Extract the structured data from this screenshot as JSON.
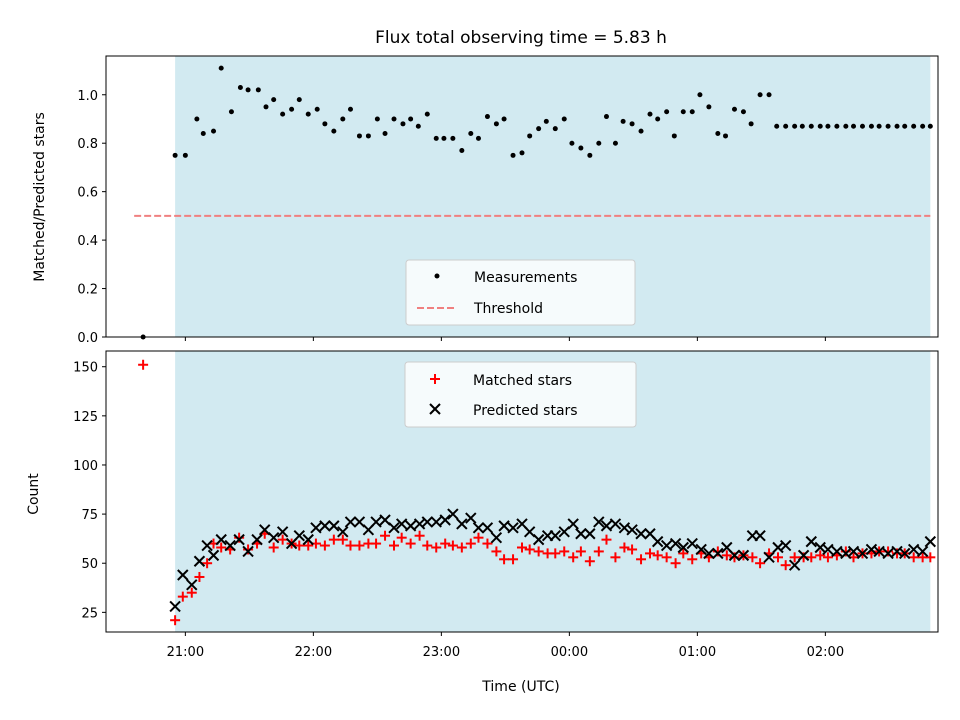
{
  "chart_data": [
    {
      "type": "scatter",
      "title": "Flux total observing time = 5.83 h",
      "ylabel": "Matched/Predicted stars",
      "xlabel": "",
      "ylim": [
        0,
        1.16
      ],
      "yticks": [
        0.0,
        0.2,
        0.4,
        0.6,
        0.8,
        1.0
      ],
      "ytick_labels": [
        "0.0",
        "0.2",
        "0.4",
        "0.6",
        "0.8",
        "1.0"
      ],
      "x_unit": "hours after 21:00 UTC",
      "xlim": [
        -0.62,
        5.88
      ],
      "xticks": [
        0,
        1,
        2,
        3,
        4,
        5
      ],
      "xtick_labels": [],
      "shaded_span": [
        -0.08,
        5.82
      ],
      "shade_color": "#add8e6",
      "threshold": 0.5,
      "threshold_xrange": [
        -0.4,
        5.82
      ],
      "threshold_color": "#f08080",
      "legend_position": "lower center",
      "series": [
        {
          "name": "Measurements",
          "marker": "dot",
          "color": "#000000",
          "x": [
            -0.33,
            -0.08,
            0.0,
            0.09,
            0.14,
            0.22,
            0.28,
            0.36,
            0.43,
            0.49,
            0.57,
            0.63,
            0.69,
            0.76,
            0.83,
            0.89,
            0.96,
            1.03,
            1.09,
            1.16,
            1.23,
            1.29,
            1.36,
            1.43,
            1.5,
            1.56,
            1.63,
            1.7,
            1.76,
            1.82,
            1.89,
            1.96,
            2.02,
            2.09,
            2.16,
            2.23,
            2.29,
            2.36,
            2.43,
            2.49,
            2.56,
            2.63,
            2.69,
            2.76,
            2.82,
            2.89,
            2.96,
            3.02,
            3.09,
            3.16,
            3.23,
            3.29,
            3.36,
            3.42,
            3.49,
            3.56,
            3.63,
            3.69,
            3.76,
            3.82,
            3.89,
            3.96,
            4.02,
            4.09,
            4.16,
            4.22,
            4.29,
            4.36,
            4.42,
            4.49,
            4.56,
            4.62,
            4.69,
            4.76,
            4.82,
            4.89,
            4.96,
            5.02,
            5.09,
            5.16,
            5.22,
            5.29,
            5.36,
            5.42,
            5.49,
            5.56,
            5.62,
            5.69,
            5.76,
            5.82
          ],
          "y": [
            0.0,
            0.75,
            0.75,
            0.9,
            0.84,
            0.85,
            1.11,
            0.93,
            1.03,
            1.02,
            1.02,
            0.95,
            0.98,
            0.92,
            0.94,
            0.98,
            0.92,
            0.94,
            0.88,
            0.85,
            0.9,
            0.94,
            0.83,
            0.83,
            0.9,
            0.84,
            0.9,
            0.88,
            0.9,
            0.87,
            0.92,
            0.82,
            0.82,
            0.82,
            0.77,
            0.84,
            0.82,
            0.91,
            0.88,
            0.9,
            0.75,
            0.76,
            0.83,
            0.86,
            0.89,
            0.86,
            0.9,
            0.8,
            0.78,
            0.75,
            0.8,
            0.91,
            0.8,
            0.89,
            0.88,
            0.85,
            0.92,
            0.9,
            0.93,
            0.83,
            0.93,
            0.93,
            1.0,
            0.95,
            0.84,
            0.83,
            0.94,
            0.93,
            0.88,
            1.0,
            1.0,
            0.87,
            0.87,
            0.87,
            0.87,
            0.87,
            0.87,
            0.87,
            0.87,
            0.87,
            0.87,
            0.87,
            0.87,
            0.87,
            0.87,
            0.87,
            0.87,
            0.87,
            0.87,
            0.87
          ]
        },
        {
          "name": "Threshold",
          "style": "dashed",
          "color": "#f08080"
        }
      ]
    },
    {
      "type": "scatter",
      "title": "",
      "ylabel": "Count",
      "xlabel": "Time (UTC)",
      "ylim": [
        15,
        158
      ],
      "yticks": [
        25,
        50,
        75,
        100,
        125,
        150
      ],
      "ytick_labels": [
        "25",
        "50",
        "75",
        "100",
        "125",
        "150"
      ],
      "x_unit": "hours after 21:00 UTC",
      "xlim": [
        -0.62,
        5.88
      ],
      "xticks": [
        0,
        1,
        2,
        3,
        4,
        5
      ],
      "xtick_labels": [
        "21:00",
        "22:00",
        "23:00",
        "00:00",
        "01:00",
        "02:00"
      ],
      "shaded_span": [
        -0.08,
        5.82
      ],
      "shade_color": "#add8e6",
      "legend_position": "upper center",
      "series": [
        {
          "name": "Matched stars",
          "marker": "plus",
          "color": "#ff0000",
          "x": [
            -0.33,
            -0.08,
            -0.02,
            0.05,
            0.11,
            0.17,
            0.22,
            0.28,
            0.35,
            0.42,
            0.49,
            0.56,
            0.62,
            0.69,
            0.76,
            0.83,
            0.89,
            0.96,
            1.02,
            1.09,
            1.16,
            1.23,
            1.29,
            1.36,
            1.43,
            1.49,
            1.56,
            1.63,
            1.69,
            1.76,
            1.83,
            1.89,
            1.96,
            2.03,
            2.09,
            2.16,
            2.23,
            2.29,
            2.36,
            2.43,
            2.49,
            2.56,
            2.63,
            2.69,
            2.76,
            2.83,
            2.89,
            2.96,
            3.03,
            3.09,
            3.16,
            3.23,
            3.29,
            3.36,
            3.43,
            3.49,
            3.56,
            3.63,
            3.69,
            3.76,
            3.83,
            3.89,
            3.96,
            4.03,
            4.09,
            4.16,
            4.23,
            4.29,
            4.36,
            4.43,
            4.49,
            4.56,
            4.63,
            4.69,
            4.76,
            4.83,
            4.89,
            4.96,
            5.02,
            5.09,
            5.16,
            5.22,
            5.29,
            5.36,
            5.42,
            5.49,
            5.56,
            5.62,
            5.69,
            5.76,
            5.82
          ],
          "y": [
            151,
            21,
            33,
            35,
            43,
            50,
            60,
            58,
            57,
            63,
            57,
            60,
            65,
            58,
            62,
            60,
            59,
            59,
            60,
            59,
            62,
            62,
            59,
            59,
            60,
            60,
            64,
            59,
            63,
            60,
            64,
            59,
            58,
            60,
            59,
            58,
            60,
            63,
            60,
            56,
            52,
            52,
            58,
            57,
            56,
            55,
            55,
            56,
            53,
            56,
            51,
            56,
            62,
            53,
            58,
            57,
            52,
            55,
            54,
            53,
            50,
            55,
            52,
            55,
            53,
            56,
            54,
            53,
            54,
            53,
            50,
            55,
            53,
            49,
            53,
            53,
            53,
            54,
            53,
            54,
            56,
            53,
            55,
            55,
            56,
            56,
            55,
            55,
            53,
            53,
            53
          ]
        },
        {
          "name": "Predicted stars",
          "marker": "x",
          "color": "#000000",
          "x": [
            -0.08,
            -0.02,
            0.05,
            0.11,
            0.17,
            0.22,
            0.28,
            0.35,
            0.42,
            0.49,
            0.56,
            0.62,
            0.69,
            0.76,
            0.83,
            0.89,
            0.96,
            1.02,
            1.09,
            1.16,
            1.23,
            1.29,
            1.36,
            1.43,
            1.49,
            1.56,
            1.63,
            1.69,
            1.76,
            1.83,
            1.89,
            1.96,
            2.03,
            2.09,
            2.16,
            2.23,
            2.29,
            2.36,
            2.43,
            2.49,
            2.56,
            2.63,
            2.69,
            2.76,
            2.83,
            2.89,
            2.96,
            3.03,
            3.09,
            3.16,
            3.23,
            3.29,
            3.36,
            3.43,
            3.49,
            3.56,
            3.63,
            3.69,
            3.76,
            3.83,
            3.89,
            3.96,
            4.03,
            4.09,
            4.16,
            4.23,
            4.29,
            4.36,
            4.43,
            4.49,
            4.56,
            4.63,
            4.69,
            4.76,
            4.83,
            4.89,
            4.96,
            5.02,
            5.09,
            5.16,
            5.22,
            5.29,
            5.36,
            5.42,
            5.49,
            5.56,
            5.62,
            5.69,
            5.76,
            5.82
          ],
          "y": [
            28,
            44,
            39,
            51,
            59,
            54,
            62,
            59,
            62,
            56,
            62,
            67,
            63,
            66,
            60,
            64,
            62,
            68,
            69,
            69,
            66,
            71,
            71,
            67,
            71,
            72,
            68,
            70,
            69,
            70,
            71,
            71,
            72,
            75,
            70,
            73,
            68,
            68,
            63,
            69,
            68,
            70,
            66,
            62,
            64,
            64,
            66,
            70,
            65,
            65,
            71,
            69,
            70,
            68,
            67,
            65,
            65,
            61,
            59,
            60,
            58,
            60,
            57,
            55,
            55,
            58,
            54,
            54,
            64,
            64,
            53,
            58,
            59,
            49,
            54,
            61,
            58,
            57,
            56,
            55,
            56,
            55,
            57,
            56,
            55,
            56,
            55,
            57,
            56,
            61
          ]
        }
      ]
    }
  ]
}
